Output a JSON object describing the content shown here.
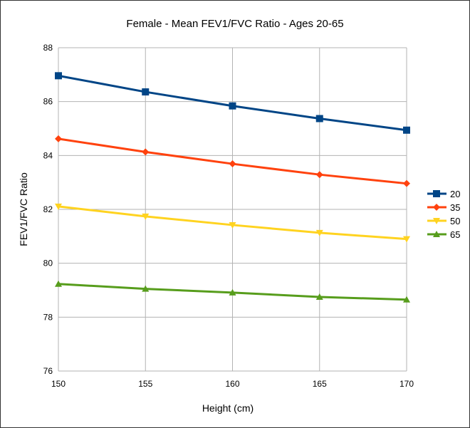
{
  "chart_data": {
    "type": "line",
    "title": "Female - Mean FEV1/FVC Ratio - Ages 20-65",
    "xlabel": "Height (cm)",
    "ylabel": "FEV1/FVC Ratio",
    "x": [
      150,
      155,
      160,
      165,
      170
    ],
    "xlim": [
      150,
      170
    ],
    "ylim": [
      76,
      88
    ],
    "yticks": [
      76,
      78,
      80,
      82,
      84,
      86,
      88
    ],
    "xticks": [
      150,
      155,
      160,
      165,
      170
    ],
    "grid": true,
    "legend_position": "right",
    "series": [
      {
        "name": "20",
        "color": "#004586",
        "marker": "square",
        "values": [
          86.96,
          86.36,
          85.84,
          85.37,
          84.94
        ]
      },
      {
        "name": "35",
        "color": "#ff420e",
        "marker": "diamond",
        "values": [
          84.62,
          84.13,
          83.69,
          83.29,
          82.96
        ]
      },
      {
        "name": "50",
        "color": "#ffd320",
        "marker": "triangle-down",
        "values": [
          82.11,
          81.74,
          81.42,
          81.13,
          80.9
        ]
      },
      {
        "name": "65",
        "color": "#579d1c",
        "marker": "triangle-up",
        "values": [
          79.23,
          79.05,
          78.91,
          78.75,
          78.65
        ]
      }
    ]
  }
}
